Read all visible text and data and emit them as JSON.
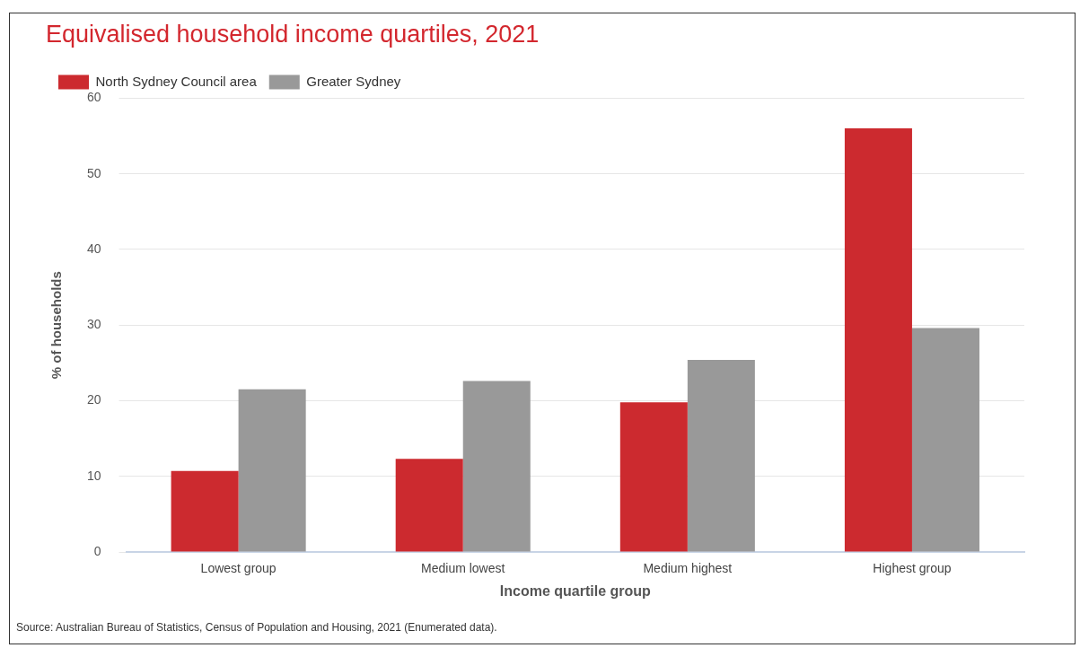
{
  "chart_data": {
    "type": "bar",
    "title": "Equivalised household income quartiles, 2021",
    "xlabel": "Income quartile group",
    "ylabel": "% of households",
    "categories": [
      "Lowest group",
      "Medium lowest",
      "Medium highest",
      "Highest group"
    ],
    "series": [
      {
        "name": "North Sydney Council area",
        "color": "#cc2a2f",
        "values": [
          10.7,
          12.3,
          19.8,
          56.0
        ]
      },
      {
        "name": "Greater Sydney",
        "color": "#999999",
        "values": [
          21.5,
          22.6,
          25.4,
          29.6
        ]
      }
    ],
    "ylim": [
      0,
      60
    ],
    "yticks": [
      0,
      10,
      20,
      30,
      40,
      50,
      60
    ],
    "grid": "y",
    "legend": "top left",
    "annotations": [
      "Source: Australian Bureau of Statistics, Census of Population and Housing, 2021 (Enumerated data)."
    ]
  }
}
